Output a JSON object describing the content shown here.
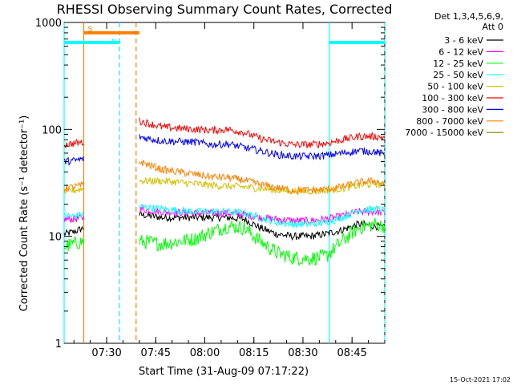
{
  "chart_data": {
    "type": "line",
    "title": "RHESSI Observing Summary Count Rates, Corrected",
    "xlabel": "Start Time (31-Aug-09 07:17:22)",
    "ylabel": "Corrected Count Rate (s⁻¹ detector⁻¹)",
    "yscale": "log",
    "ylim": [
      1,
      1000
    ],
    "xlim_minutes": [
      0,
      98
    ],
    "x_ticks": [
      {
        "t": 13,
        "label": "07:30"
      },
      {
        "t": 28,
        "label": "07:45"
      },
      {
        "t": 43,
        "label": "08:00"
      },
      {
        "t": 58,
        "label": "08:15"
      },
      {
        "t": 73,
        "label": "08:30"
      },
      {
        "t": 88,
        "label": "08:45"
      }
    ],
    "y_ticks": [
      {
        "v": 1,
        "label": "1"
      },
      {
        "v": 10,
        "label": "10"
      },
      {
        "v": 100,
        "label": "100"
      },
      {
        "v": 1000,
        "label": "1000"
      }
    ],
    "legend": {
      "header": [
        "Det 1,3,4,5,6,9,",
        "Att 0"
      ],
      "position": "right"
    },
    "gap_minutes": [
      6,
      23
    ],
    "series": [
      {
        "name": "3 - 6 keV",
        "color": "#000000",
        "t": [
          0,
          3,
          6,
          23,
          30,
          40,
          45,
          50,
          55,
          60,
          65,
          70,
          75,
          80,
          85,
          90,
          95,
          98
        ],
        "v": [
          10.5,
          11,
          12,
          16,
          15,
          15,
          15,
          15,
          14.5,
          12,
          10.5,
          10,
          10,
          10.5,
          11.5,
          13,
          12.5,
          12
        ]
      },
      {
        "name": "6 - 12 keV",
        "color": "#ff00ff",
        "t": [
          0,
          3,
          6,
          23,
          30,
          40,
          45,
          50,
          55,
          60,
          65,
          70,
          75,
          80,
          85,
          90,
          95,
          98
        ],
        "v": [
          14.5,
          14.5,
          15,
          18,
          17,
          16.5,
          16.5,
          16.5,
          16,
          15,
          14.5,
          14,
          14,
          14.5,
          15.5,
          17,
          17,
          16.5
        ]
      },
      {
        "name": "12 - 25 keV",
        "color": "#00ff00",
        "t": [
          0,
          3,
          6,
          23,
          30,
          40,
          45,
          50,
          55,
          60,
          65,
          70,
          75,
          80,
          85,
          90,
          95,
          98
        ],
        "v": [
          8,
          8.5,
          9,
          9,
          8.5,
          9.5,
          11,
          12.5,
          12,
          9,
          7,
          6.3,
          6.2,
          6.5,
          9,
          12,
          13,
          12.5
        ]
      },
      {
        "name": "25 - 50 keV",
        "color": "#00ffff",
        "t": [
          0,
          3,
          6,
          23,
          30,
          40,
          45,
          50,
          55,
          60,
          65,
          70,
          75,
          80,
          85,
          90,
          95,
          98
        ],
        "v": [
          15.5,
          15.5,
          16,
          19,
          18,
          17,
          17,
          17,
          16.5,
          15,
          13.5,
          13,
          13,
          13.5,
          15,
          17.5,
          18,
          17.5
        ]
      },
      {
        "name": "50 - 100 keV",
        "color": "#d4c000",
        "t": [
          0,
          3,
          6,
          23,
          30,
          40,
          45,
          50,
          55,
          60,
          65,
          70,
          75,
          80,
          85,
          90,
          95,
          98
        ],
        "v": [
          26,
          27,
          28,
          33,
          33,
          31,
          30,
          29.5,
          29,
          28,
          27,
          26.5,
          26.5,
          27,
          28,
          30,
          31,
          30
        ]
      },
      {
        "name": "100 - 300 keV",
        "color": "#ff0000",
        "t": [
          0,
          3,
          6,
          23,
          30,
          40,
          45,
          50,
          55,
          60,
          65,
          70,
          75,
          80,
          85,
          90,
          95,
          98
        ],
        "v": [
          72,
          74,
          76,
          120,
          105,
          100,
          98,
          100,
          94,
          82,
          76,
          72,
          72,
          74,
          80,
          86,
          86,
          84
        ]
      },
      {
        "name": "300 - 800 keV",
        "color": "#0000ff",
        "t": [
          0,
          3,
          6,
          23,
          30,
          40,
          45,
          50,
          55,
          60,
          65,
          70,
          75,
          80,
          85,
          90,
          95,
          98
        ],
        "v": [
          50,
          51,
          53,
          85,
          78,
          76,
          72,
          73,
          68,
          63,
          58,
          56,
          56,
          57,
          60,
          63,
          62,
          58
        ]
      },
      {
        "name": "800 - 7000 keV",
        "color": "#ff8000",
        "t": [
          0,
          3,
          6,
          23,
          30,
          40,
          45,
          50,
          55,
          60,
          65,
          70,
          75,
          80,
          85,
          90,
          95,
          98
        ],
        "v": [
          28,
          29,
          30,
          50,
          42,
          38,
          36,
          35.5,
          33.5,
          30.5,
          28.5,
          27,
          27,
          27.5,
          29,
          32,
          33,
          31
        ]
      },
      {
        "name": "7000 - 15000 keV",
        "color": "#808000",
        "t": [],
        "v": []
      }
    ],
    "bars": [
      {
        "label": "S",
        "color": "#ff8000",
        "start": 6,
        "end": 23,
        "value": 800
      },
      {
        "label": "N",
        "color": "#00ffff",
        "start": -1,
        "end": 17,
        "value": 650
      },
      {
        "label": "",
        "color": "#00ffff",
        "start": 81,
        "end": 98,
        "value": 650
      }
    ],
    "vertical_markers": [
      {
        "t": 0,
        "color": "#00ffff",
        "style": "solid"
      },
      {
        "t": 6,
        "color": "#ff8000",
        "style": "solid"
      },
      {
        "t": 17,
        "color": "#00ffff",
        "style": "dashed"
      },
      {
        "t": 22,
        "color": "#ff8000",
        "style": "dashed"
      },
      {
        "t": 81,
        "color": "#00ffff",
        "style": "solid"
      },
      {
        "t": 98,
        "color": "#00ffff",
        "style": "dashed"
      }
    ],
    "colors": {
      "axis": "#000000",
      "background": "#ffffff"
    }
  },
  "footer": {
    "date_stamp": "15-Oct-2021 17:02"
  }
}
